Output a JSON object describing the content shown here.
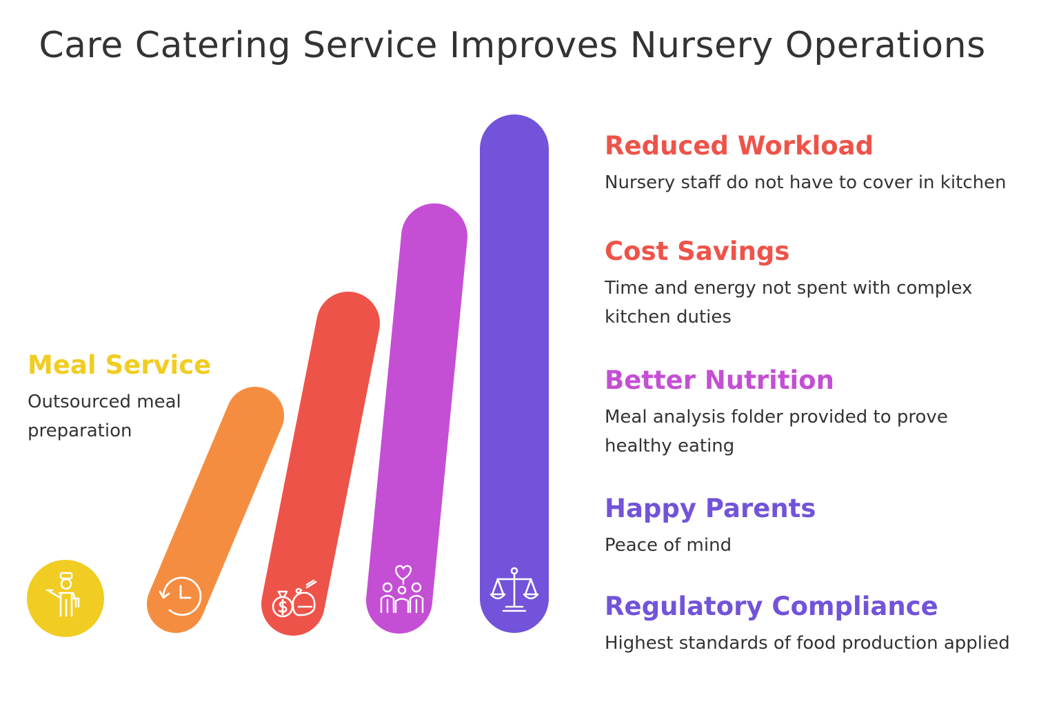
{
  "title": "Care Catering Service Improves Nursery Operations",
  "colors": {
    "yellow": "#f1cc22",
    "orange": "#f58d41",
    "red": "#ee5349",
    "magenta": "#c44fd4",
    "purple": "#7253d9",
    "text": "#333333"
  },
  "items": [
    {
      "heading": "Meal Service",
      "description": "Outsourced meal preparation",
      "color": "#f1cc22",
      "icon": "chef-icon"
    },
    {
      "heading": "Reduced Workload",
      "description": "Nursery staff do not have to cover in kitchen",
      "color": "#ee5349",
      "icon": "clock-icon"
    },
    {
      "heading": "Cost Savings",
      "description": "Time and energy not spent with complex kitchen duties",
      "color": "#ee5349",
      "icon": "money-bag-icon"
    },
    {
      "heading": "Better Nutrition",
      "description": "Meal analysis folder provided to prove healthy eating",
      "color": "#c44fd4",
      "icon": "family-heart-icon"
    },
    {
      "heading": "Happy Parents",
      "description": "Peace of mind",
      "color": "#7253d9",
      "icon": "scales-icon"
    },
    {
      "heading": "Regulatory Compliance",
      "description": "Highest standards of food production applied",
      "color": "#7253d9",
      "icon": "scales-icon"
    }
  ]
}
